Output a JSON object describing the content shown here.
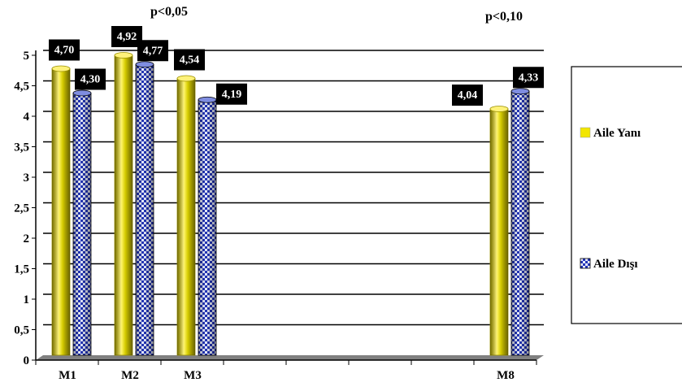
{
  "chart_data": {
    "type": "bar",
    "categories": [
      "M1",
      "M2",
      "M3",
      "",
      "",
      "",
      "",
      "M8"
    ],
    "series": [
      {
        "name": "Aile Yanı",
        "values": [
          4.7,
          4.92,
          4.54,
          null,
          null,
          null,
          null,
          4.04
        ],
        "labels": [
          "4,70",
          "4,92",
          "4,54",
          "",
          "",
          "",
          "",
          "4,04"
        ],
        "color": "#f2e600"
      },
      {
        "name": "Aile Dışı",
        "values": [
          4.3,
          4.77,
          4.19,
          null,
          null,
          null,
          null,
          4.33
        ],
        "labels": [
          "4,30",
          "4,77",
          "4,19",
          "",
          "",
          "",
          "",
          "4,33"
        ],
        "color": "#1f2fa3"
      }
    ],
    "yticks": [
      "0",
      "0,5",
      "1",
      "1,5",
      "2",
      "2,5",
      "3",
      "3,5",
      "4",
      "4,5",
      "5"
    ],
    "ylim": [
      0,
      5
    ],
    "grid": true,
    "legend_position": "right",
    "annotations": [
      "p<0,05",
      "p<0,10"
    ]
  }
}
